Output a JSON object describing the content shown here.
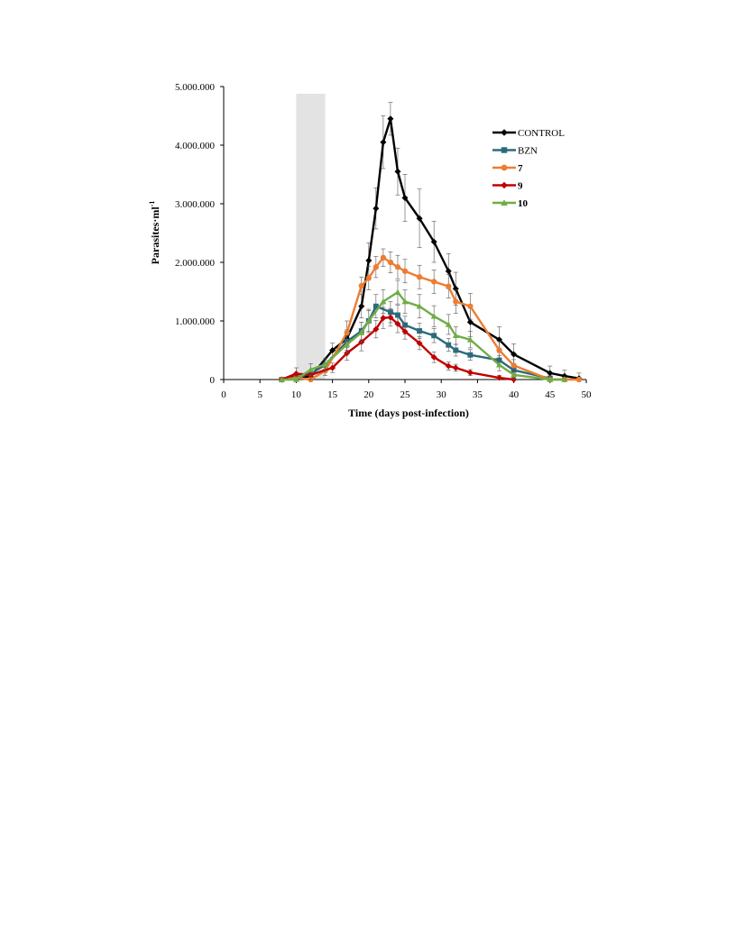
{
  "chart_data": {
    "type": "line",
    "xlabel": "Time (days post-infection)",
    "ylabel_main": "Parasites·ml",
    "ylabel_sup": "-1",
    "xlim": [
      0,
      50
    ],
    "ylim": [
      0,
      5000000
    ],
    "x_ticks": [
      0,
      5,
      10,
      15,
      20,
      25,
      30,
      35,
      40,
      45,
      50
    ],
    "x_tick_labels": [
      "0",
      "5",
      "10",
      "15",
      "20",
      "25",
      "30",
      "35",
      "40",
      "45",
      "50"
    ],
    "y_ticks": [
      0,
      1000000,
      2000000,
      3000000,
      4000000,
      5000000
    ],
    "y_tick_labels": [
      "0",
      "1.000.000",
      "2.000.000",
      "3.000.000",
      "4.000.000",
      "5.000.000"
    ],
    "shaded_band": {
      "x_start": 10,
      "x_end": 14,
      "color": "#e3e3e3"
    },
    "legend_position": "top-right",
    "grid": false,
    "series": [
      {
        "name": "CONTROL",
        "color": "#000000",
        "marker": "diamond",
        "bold_label": false,
        "points": [
          [
            8,
            0,
            0
          ],
          [
            10,
            50000,
            60000
          ],
          [
            12,
            50000,
            80000
          ],
          [
            15,
            500000,
            120000
          ],
          [
            17,
            700000,
            150000
          ],
          [
            19,
            1250000,
            200000
          ],
          [
            20,
            2030000,
            300000
          ],
          [
            21,
            2920000,
            350000
          ],
          [
            22,
            4050000,
            450000
          ],
          [
            23,
            4450000,
            280000
          ],
          [
            24,
            3550000,
            400000
          ],
          [
            25,
            3100000,
            400000
          ],
          [
            27,
            2750000,
            500000
          ],
          [
            29,
            2350000,
            350000
          ],
          [
            31,
            1850000,
            300000
          ],
          [
            32,
            1550000,
            280000
          ],
          [
            34,
            980000,
            250000
          ],
          [
            38,
            680000,
            220000
          ],
          [
            40,
            430000,
            180000
          ],
          [
            45,
            110000,
            120000
          ],
          [
            47,
            60000,
            100000
          ],
          [
            49,
            20000,
            90000
          ]
        ]
      },
      {
        "name": "BZN",
        "color": "#2c6b7d",
        "marker": "square",
        "bold_label": false,
        "points": [
          [
            8,
            0,
            0
          ],
          [
            10,
            30000,
            40000
          ],
          [
            12,
            100000,
            60000
          ],
          [
            14,
            250000,
            80000
          ],
          [
            17,
            650000,
            150000
          ],
          [
            19,
            830000,
            150000
          ],
          [
            20,
            1000000,
            180000
          ],
          [
            21,
            1250000,
            200000
          ],
          [
            23,
            1150000,
            180000
          ],
          [
            24,
            1100000,
            170000
          ],
          [
            25,
            930000,
            150000
          ],
          [
            27,
            830000,
            130000
          ],
          [
            29,
            750000,
            120000
          ],
          [
            31,
            590000,
            110000
          ],
          [
            32,
            500000,
            100000
          ],
          [
            34,
            420000,
            90000
          ],
          [
            38,
            330000,
            80000
          ],
          [
            40,
            160000,
            60000
          ],
          [
            45,
            20000,
            40000
          ]
        ]
      },
      {
        "name": "7",
        "color": "#ed7d31",
        "marker": "circle",
        "bold_label": true,
        "points": [
          [
            8,
            0,
            0
          ],
          [
            10,
            30000,
            50000
          ],
          [
            12,
            0,
            30000
          ],
          [
            14,
            150000,
            80000
          ],
          [
            17,
            800000,
            200000
          ],
          [
            19,
            1600000,
            150000
          ],
          [
            20,
            1730000,
            200000
          ],
          [
            21,
            1920000,
            180000
          ],
          [
            22,
            2080000,
            150000
          ],
          [
            23,
            2000000,
            180000
          ],
          [
            24,
            1920000,
            200000
          ],
          [
            25,
            1850000,
            200000
          ],
          [
            27,
            1750000,
            200000
          ],
          [
            29,
            1670000,
            200000
          ],
          [
            31,
            1590000,
            200000
          ],
          [
            32,
            1330000,
            200000
          ],
          [
            34,
            1250000,
            220000
          ],
          [
            38,
            500000,
            150000
          ],
          [
            40,
            240000,
            100000
          ],
          [
            45,
            0,
            50000
          ],
          [
            47,
            0,
            30000
          ],
          [
            49,
            0,
            30000
          ]
        ]
      },
      {
        "name": "9",
        "color": "#c00000",
        "marker": "diamond",
        "bold_label": true,
        "points": [
          [
            8,
            0,
            0
          ],
          [
            10,
            100000,
            100000
          ],
          [
            12,
            80000,
            80000
          ],
          [
            15,
            200000,
            80000
          ],
          [
            17,
            450000,
            120000
          ],
          [
            19,
            640000,
            150000
          ],
          [
            21,
            860000,
            150000
          ],
          [
            22,
            1050000,
            180000
          ],
          [
            23,
            1060000,
            150000
          ],
          [
            24,
            950000,
            150000
          ],
          [
            25,
            820000,
            130000
          ],
          [
            27,
            620000,
            110000
          ],
          [
            29,
            380000,
            90000
          ],
          [
            31,
            230000,
            70000
          ],
          [
            32,
            200000,
            60000
          ],
          [
            34,
            120000,
            50000
          ],
          [
            38,
            30000,
            40000
          ],
          [
            40,
            0,
            30000
          ]
        ]
      },
      {
        "name": "10",
        "color": "#70ad47",
        "marker": "triangle",
        "bold_label": true,
        "points": [
          [
            8,
            0,
            0
          ],
          [
            10,
            0,
            50000
          ],
          [
            12,
            170000,
            100000
          ],
          [
            14,
            260000,
            100000
          ],
          [
            17,
            600000,
            150000
          ],
          [
            19,
            800000,
            180000
          ],
          [
            20,
            1000000,
            200000
          ],
          [
            22,
            1330000,
            200000
          ],
          [
            24,
            1490000,
            200000
          ],
          [
            25,
            1330000,
            200000
          ],
          [
            27,
            1250000,
            200000
          ],
          [
            29,
            1080000,
            180000
          ],
          [
            31,
            940000,
            170000
          ],
          [
            32,
            750000,
            150000
          ],
          [
            34,
            680000,
            140000
          ],
          [
            38,
            250000,
            100000
          ],
          [
            40,
            80000,
            70000
          ],
          [
            45,
            0,
            40000
          ],
          [
            47,
            0,
            30000
          ]
        ]
      }
    ]
  }
}
